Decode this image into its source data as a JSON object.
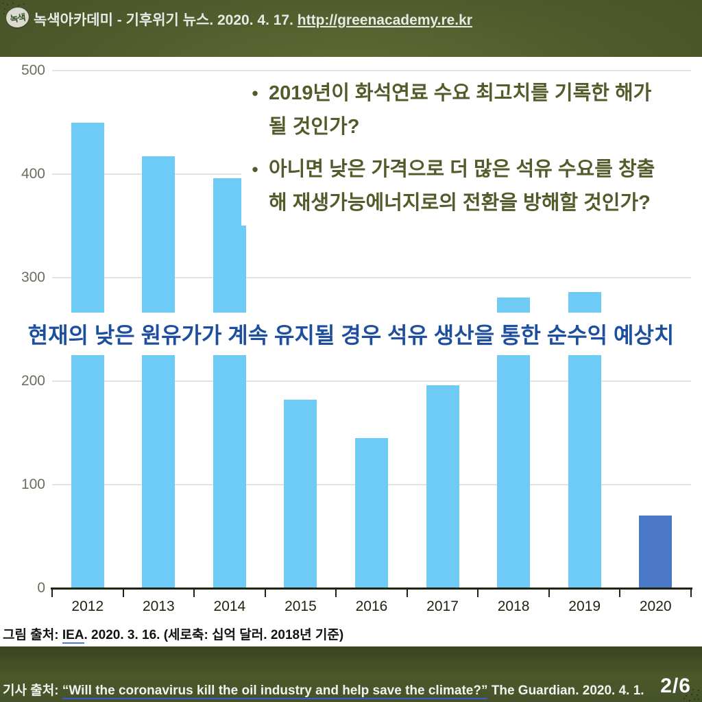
{
  "header": {
    "logo_text": "녹색",
    "title": "녹색아카데미 - 기후위기 뉴스. 2020. 4. 17. ",
    "url": "http://greenacademy.re.kr"
  },
  "bullets": {
    "items": [
      {
        "text": "2019년이 화석연료 수요 최고치를 기록한 해가 될 것인가?",
        "lines": [
          "2019년이 화석연료 수요 최고치를 기록한 해가",
          "될 것인가?"
        ]
      },
      {
        "text": "아니면 낮은 가격으로 더 많은 석유 수요를 창출 해 재생가능에너지로의 전환을 방해할 것인가?",
        "lines": [
          "아니면 낮은 가격으로 더 많은 석유 수요를 창출",
          "해 재생가능에너지로의 전환을 방해할 것인가?"
        ]
      }
    ],
    "marker": "•"
  },
  "annotation": "현재의 낮은 원유가가 계속 유지될 경우 석유 생산을 통한 순수익 예상치",
  "chart_data": {
    "type": "bar",
    "categories": [
      "2012",
      "2013",
      "2014",
      "2015",
      "2016",
      "2017",
      "2018",
      "2019",
      "2020"
    ],
    "values": [
      450,
      417,
      396,
      182,
      145,
      196,
      281,
      286,
      70
    ],
    "bar_colors": [
      "#6ecbf5",
      "#6ecbf5",
      "#6ecbf5",
      "#6ecbf5",
      "#6ecbf5",
      "#6ecbf5",
      "#6ecbf5",
      "#6ecbf5",
      "#4a78c6"
    ],
    "title": "현재의 낮은 원유가가 계속 유지될 경우 석유 생산을 통한 순수익 예상치",
    "xlabel": "",
    "ylabel": "십억 달러 (2018년 기준)",
    "ylim": [
      0,
      500
    ],
    "yticks": [
      0,
      100,
      200,
      300,
      400,
      500
    ],
    "grid": true,
    "legend": false
  },
  "caption": {
    "prefix": "그림 출처: ",
    "link": "IEA",
    "suffix": ". 2020. 3. 16. (세로축: 십억 달러. 2018년 기준)"
  },
  "footer": {
    "prefix": "기사 출처: ",
    "link": "“Will the coronavirus kill the oil industry and help save the climate?”",
    "suffix": " The Guardian. 2020. 4. 1.",
    "page": "2/6"
  },
  "colors": {
    "header_green": "#4c5829",
    "bar_blue": "#6ecbf5",
    "bar_blue_2020": "#4a78c6",
    "bullet_text_olive": "#545a2a",
    "annotation_blue": "#1e4f9f",
    "link_underline_blue": "#4a7ac8"
  }
}
